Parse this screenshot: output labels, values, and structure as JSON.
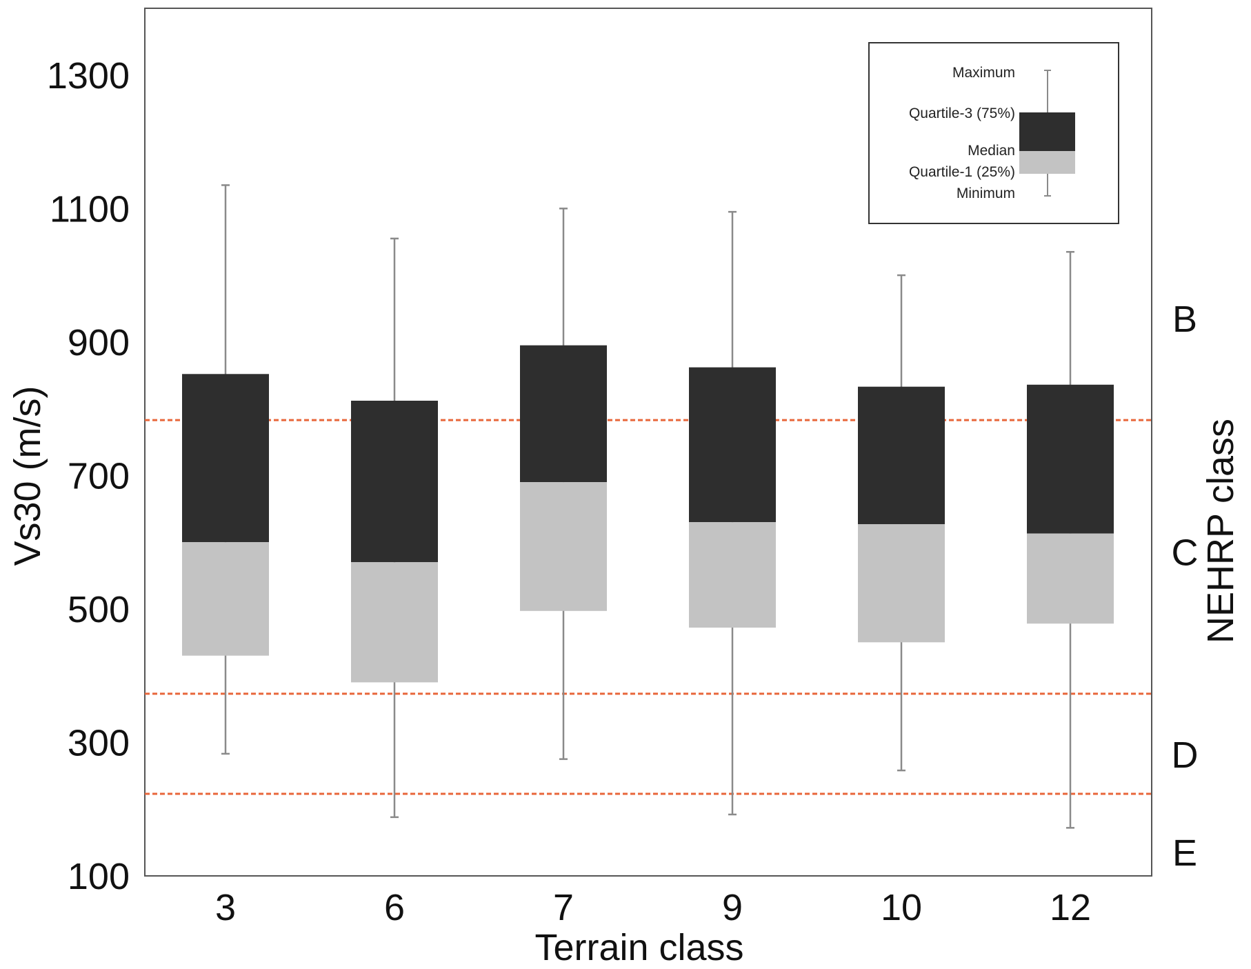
{
  "chart_data": {
    "type": "box",
    "xlabel": "Terrain class",
    "ylabel": "Vs30 (m/s)",
    "right_label": "NEHRP class",
    "ylim": [
      100,
      1400
    ],
    "yticks": [
      100,
      300,
      500,
      700,
      900,
      1100,
      1300
    ],
    "categories": [
      "3",
      "6",
      "7",
      "9",
      "10",
      "12"
    ],
    "boxes": [
      {
        "category": "3",
        "min": 283,
        "q1": 430,
        "median": 600,
        "q3": 852,
        "max": 1135
      },
      {
        "category": "6",
        "min": 188,
        "q1": 390,
        "median": 570,
        "q3": 812,
        "max": 1055
      },
      {
        "category": "7",
        "min": 275,
        "q1": 497,
        "median": 690,
        "q3": 895,
        "max": 1100
      },
      {
        "category": "9",
        "min": 192,
        "q1": 472,
        "median": 630,
        "q3": 862,
        "max": 1095
      },
      {
        "category": "10",
        "min": 258,
        "q1": 450,
        "median": 627,
        "q3": 833,
        "max": 1000
      },
      {
        "category": "12",
        "min": 172,
        "q1": 478,
        "median": 613,
        "q3": 836,
        "max": 1035
      }
    ],
    "thresholds": [
      {
        "value": 783,
        "color": "#e8663a"
      },
      {
        "value": 373,
        "color": "#e8663a"
      },
      {
        "value": 223,
        "color": "#e8663a"
      }
    ],
    "nehrp_classes": [
      {
        "label": "B",
        "y": 935
      },
      {
        "label": "C",
        "y": 585
      },
      {
        "label": "D",
        "y": 282
      },
      {
        "label": "E",
        "y": 135
      }
    ],
    "legend": {
      "position": "top-right",
      "labels": {
        "max": "Maximum",
        "q3": "Quartile-3 (75%)",
        "median": "Median",
        "q1": "Quartile-1 (25%)",
        "min": "Minimum"
      }
    },
    "colors": {
      "upper_box": "#2e2e2e",
      "lower_box": "#c3c3c3",
      "whisker": "#8a8a8a",
      "threshold": "#e8663a"
    },
    "grid": false
  }
}
